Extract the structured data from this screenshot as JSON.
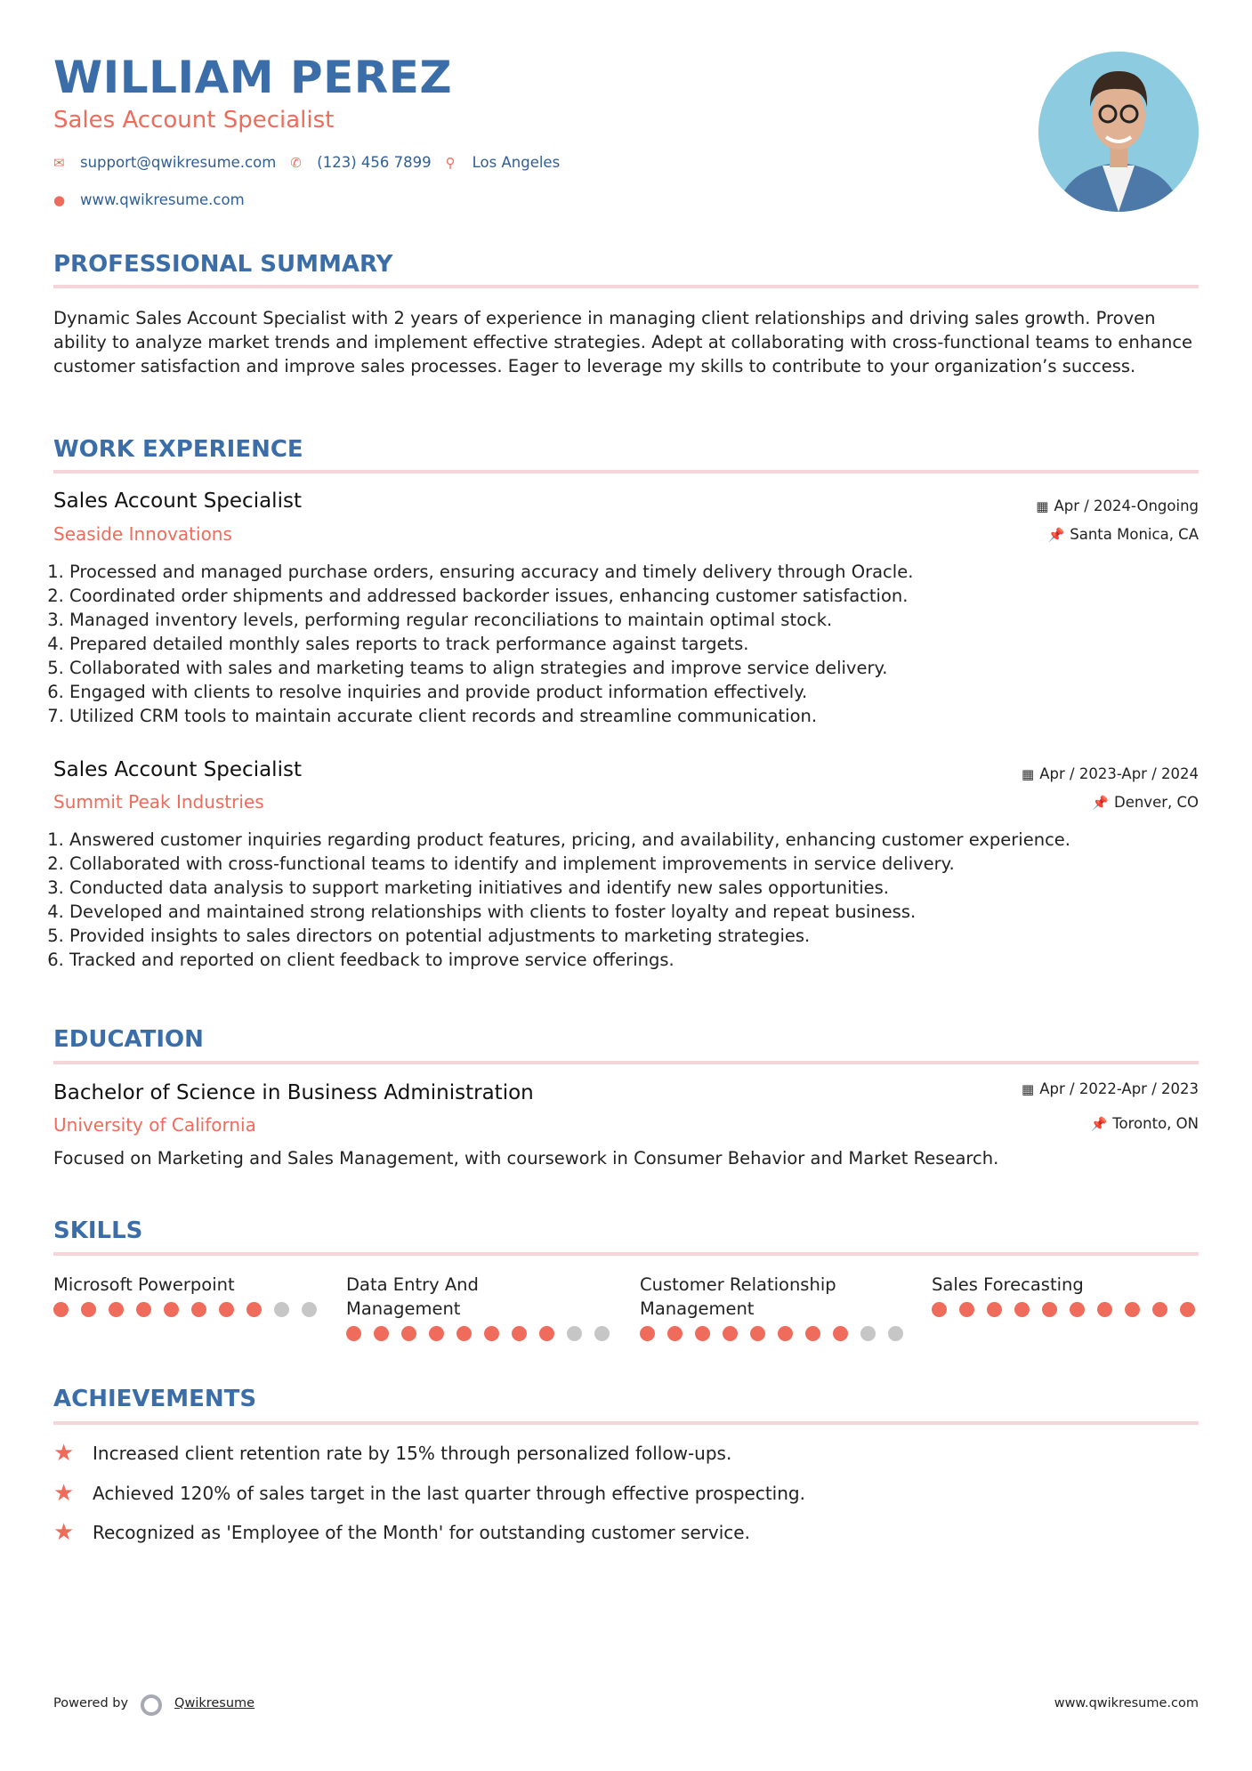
{
  "header": {
    "name": "WILLIAM PEREZ",
    "title": "Sales Account Specialist",
    "email": "support@qwikresume.com",
    "phone": "(123) 456 7899",
    "location": "Los Angeles",
    "website": "www.qwikresume.com"
  },
  "summary": {
    "heading": "PROFESSIONAL SUMMARY",
    "text": "Dynamic Sales Account Specialist with 2 years of experience in managing client relationships and driving sales growth. Proven ability to analyze market trends and implement effective strategies. Adept at collaborating with cross-functional teams to enhance customer satisfaction and improve sales processes. Eager to leverage my skills to contribute to your organization’s success."
  },
  "experience": {
    "heading": "WORK EXPERIENCE",
    "jobs": [
      {
        "title": "Sales Account Specialist",
        "company": "Seaside Innovations",
        "dates": "Apr / 2024-Ongoing",
        "location": "Santa Monica, CA",
        "bullets": [
          "Processed and managed purchase orders, ensuring accuracy and timely delivery through Oracle.",
          "Coordinated order shipments and addressed backorder issues, enhancing customer satisfaction.",
          "Managed inventory levels, performing regular reconciliations to maintain optimal stock.",
          "Prepared detailed monthly sales reports to track performance against targets.",
          "Collaborated with sales and marketing teams to align strategies and improve service delivery.",
          "Engaged with clients to resolve inquiries and provide product information effectively.",
          "Utilized CRM tools to maintain accurate client records and streamline communication."
        ]
      },
      {
        "title": "Sales Account Specialist",
        "company": "Summit Peak Industries",
        "dates": "Apr / 2023-Apr / 2024",
        "location": "Denver, CO",
        "bullets": [
          "Answered customer inquiries regarding product features, pricing, and availability, enhancing customer experience.",
          "Collaborated with cross-functional teams to identify and implement improvements in service delivery.",
          "Conducted data analysis to support marketing initiatives and identify new sales opportunities.",
          "Developed and maintained strong relationships with clients to foster loyalty and repeat business.",
          "Provided insights to sales directors on potential adjustments to marketing strategies.",
          "Tracked and reported on client feedback to improve service offerings."
        ]
      }
    ]
  },
  "education": {
    "heading": "EDUCATION",
    "degree": "Bachelor of Science in Business Administration",
    "school": "University of California",
    "dates": "Apr / 2022-Apr / 2023",
    "location": "Toronto, ON",
    "description": "Focused on Marketing and Sales Management, with coursework in Consumer Behavior and Market Research."
  },
  "skills": {
    "heading": "SKILLS",
    "items": [
      {
        "name": "Microsoft Powerpoint",
        "level": 8,
        "max": 10
      },
      {
        "name": "Data Entry And Management",
        "level": 8,
        "max": 10
      },
      {
        "name": "Customer Relationship Management",
        "level": 8,
        "max": 10
      },
      {
        "name": "Sales Forecasting",
        "level": 10,
        "max": 10
      }
    ]
  },
  "achievements": {
    "heading": "ACHIEVEMENTS",
    "items": [
      "Increased client retention rate by 15% through personalized follow-ups.",
      "Achieved 120% of sales target in the last quarter through effective prospecting.",
      "Recognized as 'Employee of the Month' for outstanding customer service."
    ]
  },
  "footer": {
    "powered_by": "Powered by",
    "brand": "Qwikresume",
    "site": "www.qwikresume.com"
  },
  "colors": {
    "accent_blue": "#3b6ea8",
    "accent_coral": "#ef6b5b",
    "rule": "#f6d5da",
    "dot_off": "#c6c6c6"
  }
}
